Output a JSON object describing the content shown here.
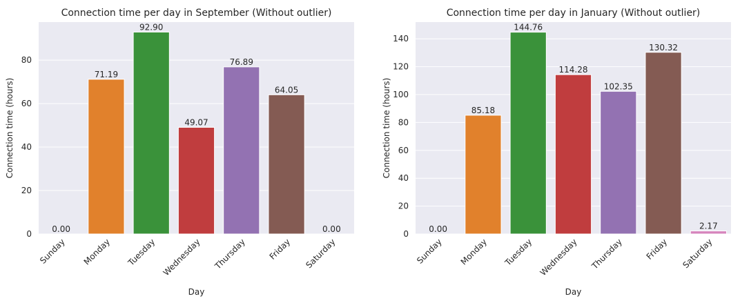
{
  "chart_data": [
    {
      "type": "bar",
      "title": "Connection time per day in September (Without outlier)",
      "xlabel": "Day",
      "ylabel": "Connection time (hours)",
      "categories": [
        "Sunday",
        "Monday",
        "Tuesday",
        "Wednesday",
        "Thursday",
        "Friday",
        "Saturday"
      ],
      "values": [
        0.0,
        71.19,
        92.9,
        49.07,
        76.89,
        64.05,
        0.0
      ],
      "data_labels": [
        "0.00",
        "71.19",
        "92.90",
        "49.07",
        "76.89",
        "64.05",
        "0.00"
      ],
      "yticks": [
        0,
        20,
        40,
        60,
        80
      ],
      "ylim": [
        0,
        97.5
      ],
      "colors": [
        "#3274a1",
        "#e1812c",
        "#3a923a",
        "#c03d3e",
        "#9372b2",
        "#845b53",
        "#d684bd"
      ],
      "grid": true,
      "background": "#eaeaf2"
    },
    {
      "type": "bar",
      "title": "Connection time per day in January (Without outlier)",
      "xlabel": "Day",
      "ylabel": "Connection time (hours)",
      "categories": [
        "Sunday",
        "Monday",
        "Tuesday",
        "Wednesday",
        "Thursday",
        "Friday",
        "Saturday"
      ],
      "values": [
        0.0,
        85.18,
        144.76,
        114.28,
        102.35,
        130.32,
        2.17
      ],
      "data_labels": [
        "0.00",
        "85.18",
        "144.76",
        "114.28",
        "102.35",
        "130.32",
        "2.17"
      ],
      "yticks": [
        0,
        20,
        40,
        60,
        80,
        100,
        120,
        140
      ],
      "ylim": [
        0,
        152
      ],
      "colors": [
        "#3274a1",
        "#e1812c",
        "#3a923a",
        "#c03d3e",
        "#9372b2",
        "#845b53",
        "#d684bd"
      ],
      "grid": true,
      "background": "#eaeaf2"
    }
  ]
}
